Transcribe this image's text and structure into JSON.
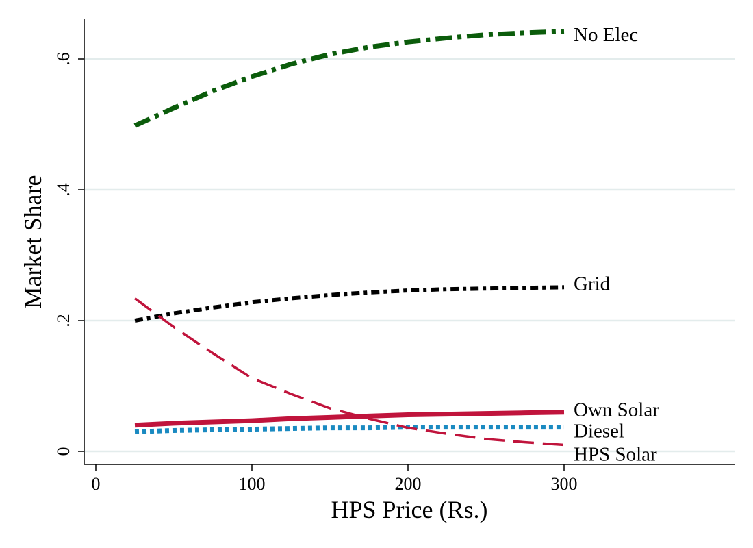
{
  "chart_data": {
    "type": "line",
    "title": "",
    "xlabel": "HPS Price (Rs.)",
    "ylabel": "Market Share",
    "xlim": [
      0,
      400
    ],
    "ylim": [
      0,
      0.65
    ],
    "xticks": [
      0,
      100,
      200,
      300
    ],
    "xtick_labels": [
      "0",
      "100",
      "200",
      "300"
    ],
    "yticks": [
      0,
      0.2,
      0.4,
      0.6
    ],
    "ytick_labels": [
      "0",
      ".2",
      ".4",
      ".6"
    ],
    "grid": true,
    "legend": "inline-right",
    "series": [
      {
        "name": "No Elec",
        "style": "long-dash-dot",
        "color": "#0b5c0b",
        "width": 7,
        "x": [
          25,
          50,
          75,
          100,
          125,
          150,
          175,
          200,
          225,
          250,
          275,
          300
        ],
        "y": [
          0.498,
          0.525,
          0.551,
          0.573,
          0.592,
          0.607,
          0.618,
          0.626,
          0.632,
          0.637,
          0.64,
          0.642
        ]
      },
      {
        "name": "Grid",
        "style": "short-dash-dot",
        "color": "#000000",
        "width": 6,
        "x": [
          25,
          50,
          75,
          100,
          125,
          150,
          175,
          200,
          225,
          250,
          275,
          300
        ],
        "y": [
          0.2,
          0.211,
          0.22,
          0.228,
          0.234,
          0.239,
          0.243,
          0.246,
          0.248,
          0.249,
          0.25,
          0.251
        ]
      },
      {
        "name": "Own Solar",
        "style": "solid",
        "color": "#c0143c",
        "width": 7,
        "x": [
          25,
          50,
          75,
          100,
          125,
          150,
          175,
          200,
          225,
          250,
          275,
          300
        ],
        "y": [
          0.04,
          0.043,
          0.045,
          0.047,
          0.05,
          0.052,
          0.054,
          0.056,
          0.057,
          0.058,
          0.059,
          0.06
        ]
      },
      {
        "name": "Diesel",
        "style": "dotted",
        "color": "#1a8ac1",
        "width": 7,
        "x": [
          25,
          50,
          75,
          100,
          125,
          150,
          175,
          200,
          225,
          250,
          275,
          300
        ],
        "y": [
          0.03,
          0.032,
          0.033,
          0.034,
          0.035,
          0.036,
          0.036,
          0.037,
          0.037,
          0.037,
          0.037,
          0.037
        ]
      },
      {
        "name": "HPS Solar",
        "style": "dashed",
        "color": "#c0143c",
        "width": 3.5,
        "x": [
          25,
          50,
          75,
          100,
          125,
          150,
          175,
          200,
          225,
          250,
          275,
          300
        ],
        "y": [
          0.234,
          0.19,
          0.15,
          0.112,
          0.088,
          0.066,
          0.05,
          0.036,
          0.027,
          0.019,
          0.014,
          0.01
        ]
      }
    ]
  }
}
